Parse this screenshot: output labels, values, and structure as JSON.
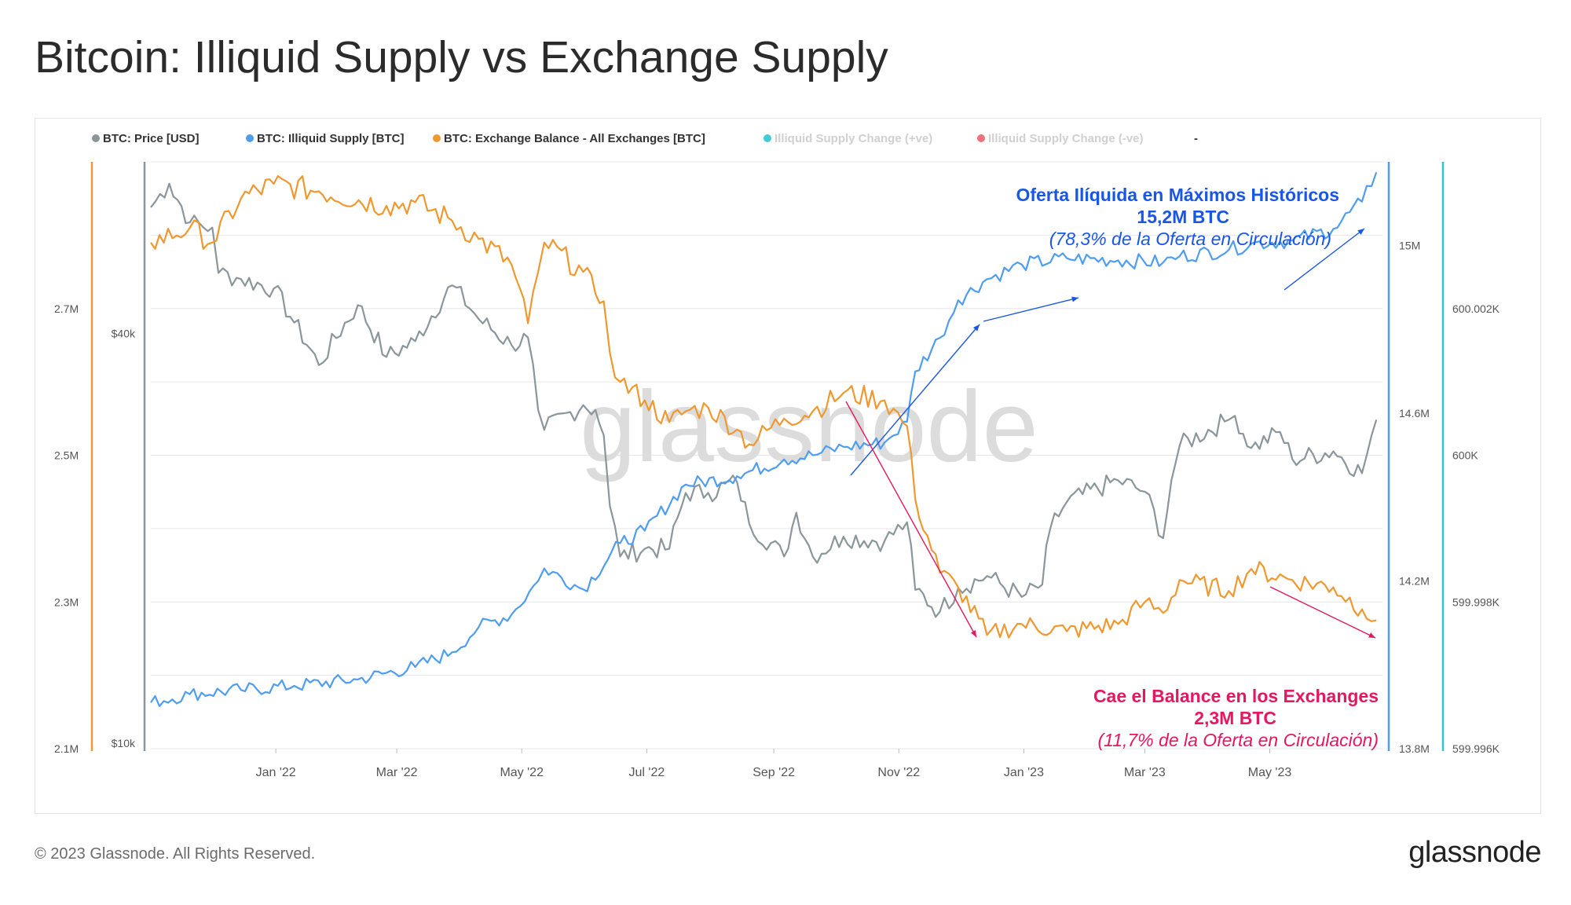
{
  "title": "Bitcoin: Illiquid Supply vs Exchange Supply",
  "footer": {
    "copyright": "© 2023 Glassnode. All Rights Reserved.",
    "logo": "glassnode"
  },
  "watermark": "glassnode",
  "chart_data": {
    "type": "line",
    "legend_position": "top",
    "grid": true,
    "legend": [
      {
        "label": "BTC: Price [USD]",
        "color": "#8b969a",
        "dimmed": false
      },
      {
        "label": "BTC: Illiquid Supply [BTC]",
        "color": "#4f9df0",
        "dimmed": false
      },
      {
        "label": "BTC: Exchange Balance - All Exchanges [BTC]",
        "color": "#f09830",
        "dimmed": false
      },
      {
        "label": "Illiquid Supply Change (+ve)",
        "color": "#2ac6d2",
        "dimmed": true
      },
      {
        "label": "Illiquid Supply Change (-ve)",
        "color": "#f0606a",
        "dimmed": true
      },
      {
        "label": "-",
        "color": "#333333",
        "dimmed": false,
        "no_marker": true
      }
    ],
    "x_ticks": [
      "Jan '22",
      "Mar '22",
      "May '22",
      "Jul '22",
      "Sep '22",
      "Nov '22",
      "Jan '23",
      "Mar '23",
      "May '23"
    ],
    "x_tick_dates": [
      "2022-01-01",
      "2022-03-01",
      "2022-05-01",
      "2022-07-01",
      "2022-09-01",
      "2022-11-01",
      "2023-01-01",
      "2023-03-01",
      "2023-05-01"
    ],
    "x_range": [
      "2021-11-01",
      "2023-06-25"
    ],
    "axes": {
      "exchange_balance": {
        "ticks": [
          "2.7M",
          "2.5M",
          "2.3M",
          "2.1M"
        ],
        "tick_values": [
          2700000,
          2500000,
          2300000,
          2100000
        ],
        "range": [
          2100000,
          2900000
        ],
        "color": "#f09830"
      },
      "price": {
        "ticks": [
          "$40k",
          "$10k"
        ],
        "tick_values": [
          40000,
          10000
        ],
        "scale": "log",
        "range": [
          10000,
          71000
        ],
        "color": "#8b969a"
      },
      "illiquid_supply": {
        "ticks": [
          "15M",
          "14.6M",
          "14.2M",
          "13.8M"
        ],
        "tick_values": [
          15000000,
          14600000,
          14200000,
          13800000
        ],
        "range": [
          13800000,
          15200000
        ],
        "color": "#4f9df0"
      },
      "supply_change": {
        "ticks": [
          "600.002K",
          "600K",
          "599.998K",
          "599.996K"
        ],
        "tick_values": [
          600002,
          600000,
          599998,
          599996
        ],
        "range": [
          599996,
          600004
        ],
        "color": "#2ac6d2"
      }
    },
    "series": [
      {
        "name": "BTC: Price [USD]",
        "axis": "price",
        "color": "#8b969a",
        "points": [
          [
            "2021-11-01",
            61000
          ],
          [
            "2021-11-10",
            66000
          ],
          [
            "2021-11-20",
            58000
          ],
          [
            "2021-12-01",
            57000
          ],
          [
            "2021-12-04",
            49000
          ],
          [
            "2021-12-15",
            48000
          ],
          [
            "2021-12-31",
            46500
          ],
          [
            "2022-01-10",
            41500
          ],
          [
            "2022-01-22",
            36000
          ],
          [
            "2022-02-10",
            44000
          ],
          [
            "2022-02-24",
            37000
          ],
          [
            "2022-03-10",
            39000
          ],
          [
            "2022-03-28",
            47000
          ],
          [
            "2022-04-10",
            42000
          ],
          [
            "2022-04-26",
            38500
          ],
          [
            "2022-05-04",
            39500
          ],
          [
            "2022-05-09",
            31000
          ],
          [
            "2022-05-12",
            29000
          ],
          [
            "2022-05-31",
            31500
          ],
          [
            "2022-06-06",
            31000
          ],
          [
            "2022-06-10",
            28500
          ],
          [
            "2022-06-13",
            22500
          ],
          [
            "2022-06-18",
            19000
          ],
          [
            "2022-06-30",
            19500
          ],
          [
            "2022-07-12",
            19500
          ],
          [
            "2022-07-20",
            23500
          ],
          [
            "2022-07-31",
            23500
          ],
          [
            "2022-08-14",
            24400
          ],
          [
            "2022-08-20",
            21200
          ],
          [
            "2022-09-06",
            19000
          ],
          [
            "2022-09-12",
            22000
          ],
          [
            "2022-09-20",
            19000
          ],
          [
            "2022-10-05",
            20300
          ],
          [
            "2022-10-25",
            20000
          ],
          [
            "2022-11-05",
            21300
          ],
          [
            "2022-11-09",
            17000
          ],
          [
            "2022-11-21",
            15800
          ],
          [
            "2022-11-30",
            17100
          ],
          [
            "2022-12-14",
            17800
          ],
          [
            "2022-12-31",
            16600
          ],
          [
            "2023-01-10",
            17300
          ],
          [
            "2023-01-14",
            20900
          ],
          [
            "2023-01-22",
            22800
          ],
          [
            "2023-02-16",
            24500
          ],
          [
            "2023-03-01",
            23600
          ],
          [
            "2023-03-10",
            20200
          ],
          [
            "2023-03-14",
            24500
          ],
          [
            "2023-03-18",
            27500
          ],
          [
            "2023-04-11",
            30000
          ],
          [
            "2023-04-14",
            30400
          ],
          [
            "2023-04-22",
            27300
          ],
          [
            "2023-05-06",
            28800
          ],
          [
            "2023-05-12",
            26300
          ],
          [
            "2023-06-01",
            27000
          ],
          [
            "2023-06-15",
            25100
          ],
          [
            "2023-06-22",
            30000
          ]
        ]
      },
      {
        "name": "BTC: Illiquid Supply [BTC]",
        "axis": "illiquid_supply",
        "color": "#4f9df0",
        "points": [
          [
            "2021-11-01",
            13910000
          ],
          [
            "2021-11-20",
            13930000
          ],
          [
            "2021-12-15",
            13940000
          ],
          [
            "2022-01-10",
            13950000
          ],
          [
            "2022-02-10",
            13965000
          ],
          [
            "2022-03-10",
            13995000
          ],
          [
            "2022-03-28",
            14030000
          ],
          [
            "2022-04-10",
            14090000
          ],
          [
            "2022-04-26",
            14120000
          ],
          [
            "2022-05-09",
            14200000
          ],
          [
            "2022-05-12",
            14230000
          ],
          [
            "2022-05-31",
            14180000
          ],
          [
            "2022-06-18",
            14290000
          ],
          [
            "2022-06-30",
            14320000
          ],
          [
            "2022-07-20",
            14430000
          ],
          [
            "2022-08-14",
            14450000
          ],
          [
            "2022-09-06",
            14490000
          ],
          [
            "2022-09-20",
            14500000
          ],
          [
            "2022-10-05",
            14520000
          ],
          [
            "2022-10-25",
            14530000
          ],
          [
            "2022-11-05",
            14580000
          ],
          [
            "2022-11-09",
            14700000
          ],
          [
            "2022-11-21",
            14780000
          ],
          [
            "2022-11-30",
            14870000
          ],
          [
            "2022-12-14",
            14920000
          ],
          [
            "2022-12-31",
            14955000
          ],
          [
            "2023-01-22",
            14970000
          ],
          [
            "2023-02-16",
            14965000
          ],
          [
            "2023-03-10",
            14960000
          ],
          [
            "2023-03-18",
            14975000
          ],
          [
            "2023-04-11",
            14990000
          ],
          [
            "2023-04-22",
            15005000
          ],
          [
            "2023-05-12",
            15012000
          ],
          [
            "2023-06-01",
            15040000
          ],
          [
            "2023-06-15",
            15105000
          ],
          [
            "2023-06-22",
            15175000
          ]
        ]
      },
      {
        "name": "BTC: Exchange Balance - All Exchanges [BTC]",
        "axis": "exchange_balance",
        "color": "#f09830",
        "points": [
          [
            "2021-11-01",
            2790000
          ],
          [
            "2021-11-20",
            2810000
          ],
          [
            "2021-12-01",
            2790000
          ],
          [
            "2021-12-15",
            2850000
          ],
          [
            "2021-12-31",
            2870000
          ],
          [
            "2022-01-22",
            2860000
          ],
          [
            "2022-02-24",
            2840000
          ],
          [
            "2022-03-10",
            2845000
          ],
          [
            "2022-03-28",
            2820000
          ],
          [
            "2022-04-10",
            2795000
          ],
          [
            "2022-04-26",
            2760000
          ],
          [
            "2022-05-04",
            2680000
          ],
          [
            "2022-05-09",
            2750000
          ],
          [
            "2022-05-12",
            2790000
          ],
          [
            "2022-05-31",
            2750000
          ],
          [
            "2022-06-06",
            2720000
          ],
          [
            "2022-06-10",
            2710000
          ],
          [
            "2022-06-13",
            2640000
          ],
          [
            "2022-06-18",
            2600000
          ],
          [
            "2022-06-30",
            2575000
          ],
          [
            "2022-07-12",
            2545000
          ],
          [
            "2022-07-20",
            2560000
          ],
          [
            "2022-07-31",
            2565000
          ],
          [
            "2022-08-14",
            2535000
          ],
          [
            "2022-08-20",
            2515000
          ],
          [
            "2022-09-06",
            2550000
          ],
          [
            "2022-09-20",
            2560000
          ],
          [
            "2022-10-05",
            2585000
          ],
          [
            "2022-10-25",
            2575000
          ],
          [
            "2022-11-05",
            2540000
          ],
          [
            "2022-11-09",
            2440000
          ],
          [
            "2022-11-21",
            2340000
          ],
          [
            "2022-11-30",
            2320000
          ],
          [
            "2022-12-14",
            2255000
          ],
          [
            "2022-12-31",
            2270000
          ],
          [
            "2023-01-22",
            2260000
          ],
          [
            "2023-02-16",
            2270000
          ],
          [
            "2023-03-01",
            2300000
          ],
          [
            "2023-03-10",
            2285000
          ],
          [
            "2023-03-18",
            2330000
          ],
          [
            "2023-04-11",
            2315000
          ],
          [
            "2023-04-22",
            2345000
          ],
          [
            "2023-05-12",
            2330000
          ],
          [
            "2023-06-01",
            2320000
          ],
          [
            "2023-06-15",
            2290000
          ],
          [
            "2023-06-22",
            2275000
          ]
        ]
      }
    ],
    "annotations": [
      {
        "id": "illiquid",
        "color": "#1a56e6",
        "title": "Oferta Ilíquida en Máximos Históricos",
        "value": "15,2M BTC",
        "note": "(78,3% de la Oferta en Circulación)"
      },
      {
        "id": "exchange",
        "color": "#e3185e",
        "title": "Cae el Balance en los Exchanges",
        "value": "2,3M BTC",
        "note": "(11,7% de la Oferta en Circulación)"
      }
    ]
  }
}
